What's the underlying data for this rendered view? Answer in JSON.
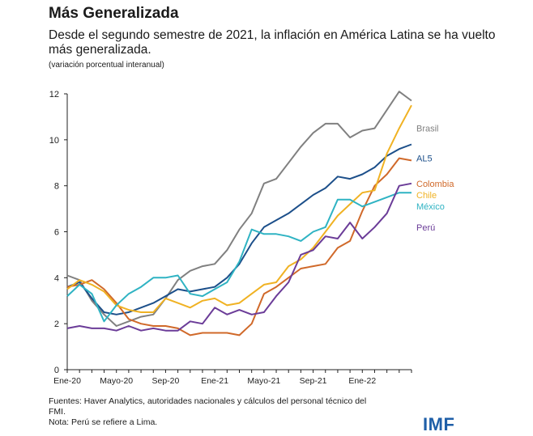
{
  "title": "Más Generalizada",
  "subtitle": "Desde el segundo semestre de 2021, la inflación en América Latina se ha vuelto más generalizada.",
  "unit_note": "(variación porcentual interanual)",
  "footer": {
    "source": "Fuentes: Haver Analytics, autoridades nacionales y cálculos del personal técnico del FMI.",
    "note": "Nota: Perú se refiere a Lima."
  },
  "logo": "IMF",
  "chart_data": {
    "type": "line",
    "title": "",
    "xlabel": "",
    "ylabel": "",
    "ylim": [
      0,
      12
    ],
    "yticks": [
      0,
      2,
      4,
      6,
      8,
      10,
      12
    ],
    "grid": false,
    "x": [
      "Ene-20",
      "Feb-20",
      "Mar-20",
      "Abr-20",
      "May-20",
      "Jun-20",
      "Jul-20",
      "Ago-20",
      "Sep-20",
      "Oct-20",
      "Nov-20",
      "Dic-20",
      "Ene-21",
      "Feb-21",
      "Mar-21",
      "Abr-21",
      "May-21",
      "Jun-21",
      "Jul-21",
      "Ago-21",
      "Sep-21",
      "Oct-21",
      "Nov-21",
      "Dic-21",
      "Ene-22",
      "Feb-22",
      "Mar-22",
      "Abr-22",
      "May-22"
    ],
    "xtick_labels": [
      "Ene-20",
      "Mayo-20",
      "Sep-20",
      "Ene-21",
      "Mayo-21",
      "Sep-21",
      "Ene-22"
    ],
    "xtick_positions": [
      0,
      4,
      8,
      12,
      16,
      20,
      24
    ],
    "series": [
      {
        "name": "Brasil",
        "color": "#808080",
        "values": [
          4.1,
          3.9,
          3.0,
          2.4,
          1.9,
          2.1,
          2.3,
          2.4,
          3.1,
          3.9,
          4.3,
          4.5,
          4.6,
          5.2,
          6.1,
          6.8,
          8.1,
          8.3,
          9.0,
          9.7,
          10.3,
          10.7,
          10.7,
          10.1,
          10.4,
          10.5,
          11.3,
          12.1,
          11.7
        ]
      },
      {
        "name": "AL5",
        "color": "#1c4f8a",
        "values": [
          3.6,
          3.8,
          3.1,
          2.5,
          2.4,
          2.5,
          2.7,
          2.9,
          3.2,
          3.5,
          3.4,
          3.5,
          3.6,
          4.0,
          4.6,
          5.5,
          6.2,
          6.5,
          6.8,
          7.2,
          7.6,
          7.9,
          8.4,
          8.3,
          8.5,
          8.8,
          9.3,
          9.6,
          9.8
        ]
      },
      {
        "name": "Colombia",
        "color": "#d0692a",
        "values": [
          3.6,
          3.7,
          3.9,
          3.5,
          2.9,
          2.2,
          2.0,
          1.9,
          1.9,
          1.8,
          1.5,
          1.6,
          1.6,
          1.6,
          1.5,
          2.0,
          3.3,
          3.6,
          4.0,
          4.4,
          4.5,
          4.6,
          5.3,
          5.6,
          6.9,
          8.0,
          8.5,
          9.2,
          9.1
        ]
      },
      {
        "name": "Chile",
        "color": "#f0b223",
        "values": [
          3.5,
          3.9,
          3.7,
          3.4,
          2.8,
          2.6,
          2.5,
          2.5,
          3.1,
          2.9,
          2.7,
          3.0,
          3.1,
          2.8,
          2.9,
          3.3,
          3.7,
          3.8,
          4.5,
          4.8,
          5.3,
          6.0,
          6.7,
          7.2,
          7.7,
          7.8,
          9.4,
          10.5,
          11.5
        ]
      },
      {
        "name": "México",
        "color": "#2fb3c3",
        "values": [
          3.2,
          3.7,
          3.3,
          2.1,
          2.8,
          3.3,
          3.6,
          4.0,
          4.0,
          4.1,
          3.3,
          3.2,
          3.5,
          3.8,
          4.7,
          6.1,
          5.9,
          5.9,
          5.8,
          5.6,
          6.0,
          6.2,
          7.4,
          7.4,
          7.1,
          7.3,
          7.5,
          7.7,
          7.7
        ]
      },
      {
        "name": "Perú",
        "color": "#6b3c98",
        "values": [
          1.8,
          1.9,
          1.8,
          1.8,
          1.7,
          1.9,
          1.7,
          1.8,
          1.7,
          1.7,
          2.1,
          2.0,
          2.7,
          2.4,
          2.6,
          2.4,
          2.5,
          3.2,
          3.8,
          5.0,
          5.2,
          5.8,
          5.7,
          6.4,
          5.7,
          6.2,
          6.8,
          8.0,
          8.1
        ]
      }
    ],
    "label_positions": {
      "Brasil": 10.5,
      "AL5": 9.2,
      "Colombia": 8.1,
      "Chile": 7.6,
      "México": 7.1,
      "Perú": 6.2
    }
  }
}
